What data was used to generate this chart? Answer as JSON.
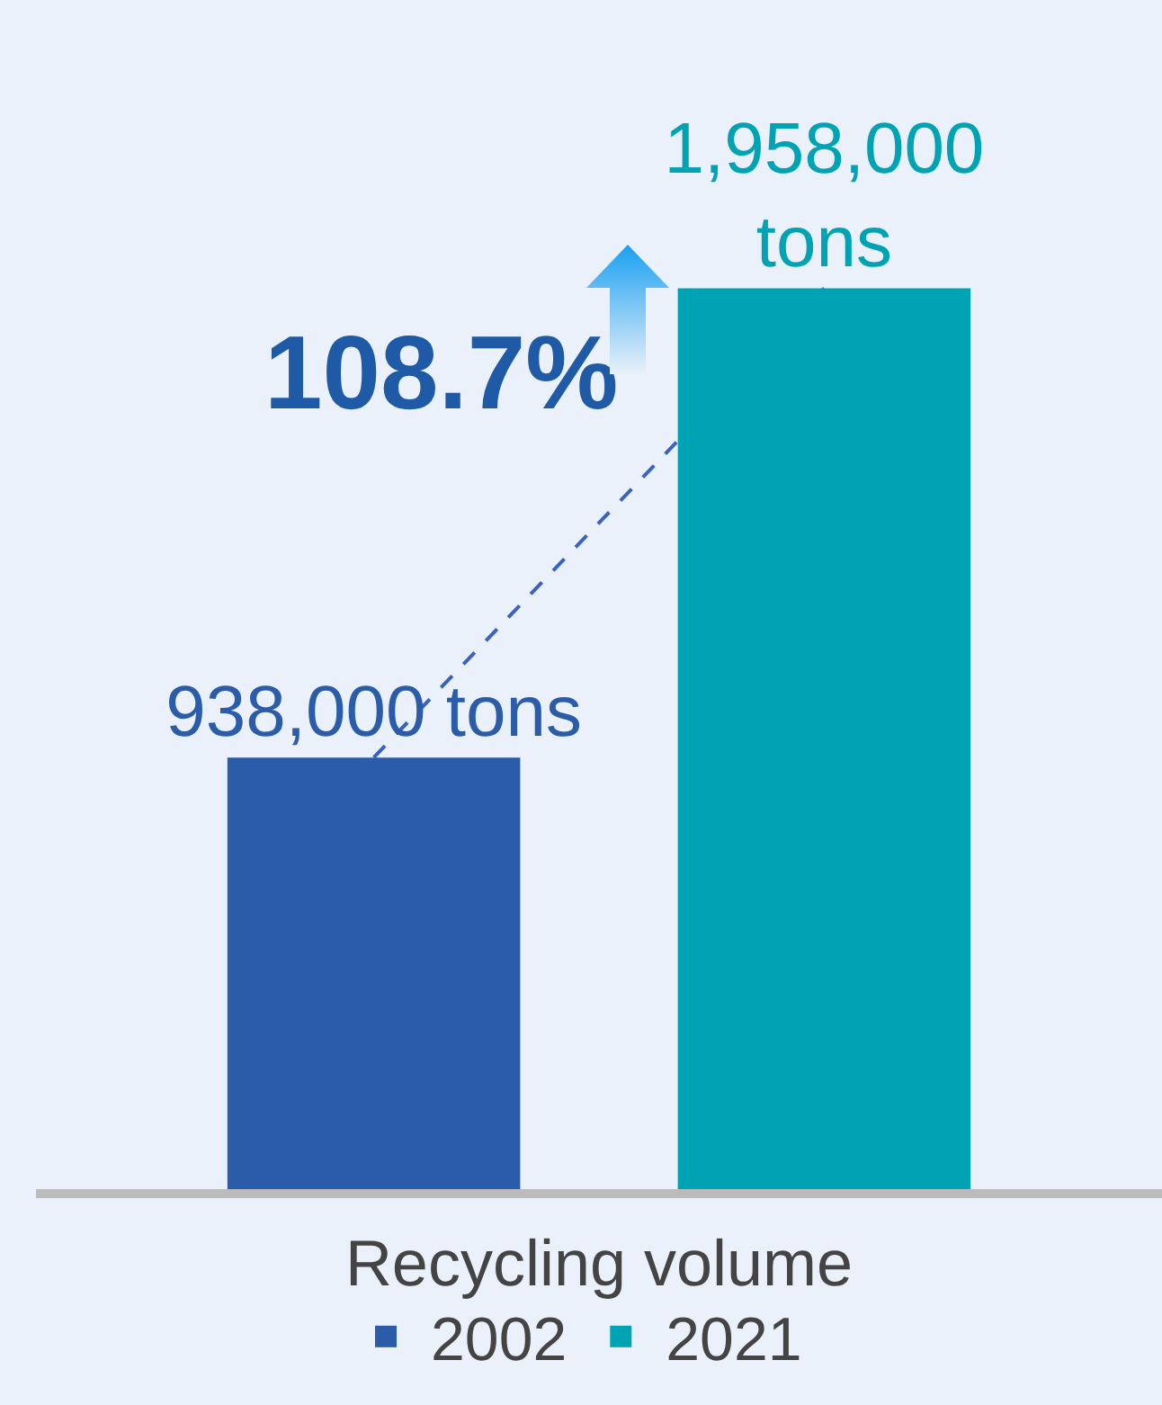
{
  "chart_data": {
    "type": "bar",
    "categories": [
      null
    ],
    "legend_title": "Recycling volume",
    "legend": "bottom",
    "series": [
      {
        "name": "2002",
        "color": "#2a5caa",
        "values": [
          938000
        ],
        "value_labels": [
          "938,000 tons"
        ]
      },
      {
        "name": "2021",
        "color": "#00a3b4",
        "values": [
          1958000
        ],
        "value_labels": [
          "1,958,000 tons"
        ]
      }
    ],
    "annotations": [
      "108.7%"
    ]
  }
}
